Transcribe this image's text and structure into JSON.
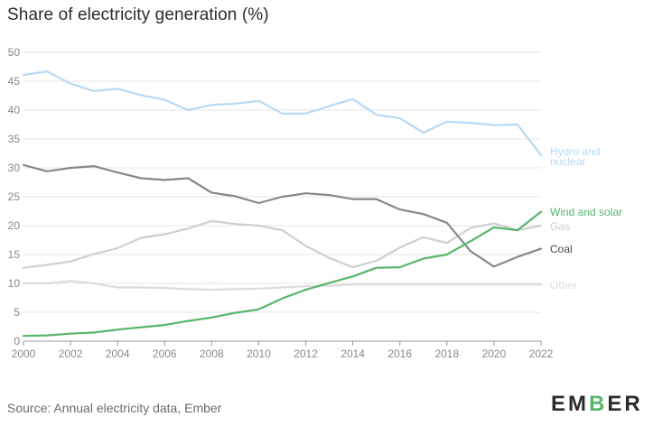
{
  "title": "Share of electricity generation (%)",
  "source": "Source: Annual electricity data, Ember",
  "logo": {
    "text": "EMBER",
    "accent": "#56b66a"
  },
  "chart_data": {
    "type": "line",
    "title": "Share of electricity generation (%)",
    "xlabel": "",
    "ylabel": "",
    "xlim": [
      2000,
      2022
    ],
    "ylim": [
      0,
      50
    ],
    "x_ticks": [
      "2000",
      "2002",
      "2004",
      "2006",
      "2008",
      "2010",
      "2012",
      "2014",
      "2016",
      "2018",
      "2020",
      "2022"
    ],
    "y_ticks": [
      "0",
      "5",
      "10",
      "15",
      "20",
      "25",
      "30",
      "35",
      "40",
      "45",
      "50"
    ],
    "grid": true,
    "legend": "direct labels at right end of lines",
    "x": [
      2000,
      2001,
      2002,
      2003,
      2004,
      2005,
      2006,
      2007,
      2008,
      2009,
      2010,
      2011,
      2012,
      2013,
      2014,
      2015,
      2016,
      2017,
      2018,
      2019,
      2020,
      2021,
      2022
    ],
    "series": [
      {
        "name": "Hydro and nuclear",
        "label_lines": [
          "Hydro and",
          "nuclear"
        ],
        "color": "#b8d9f3",
        "values": [
          46.1,
          46.7,
          44.6,
          43.3,
          43.7,
          42.6,
          41.8,
          40.0,
          40.9,
          41.1,
          41.6,
          39.4,
          39.4,
          40.7,
          41.9,
          39.2,
          38.6,
          36.1,
          38.0,
          37.8,
          37.4,
          37.5,
          32.2
        ]
      },
      {
        "name": "Coal",
        "label_lines": [
          "Coal"
        ],
        "color": "#888888",
        "values": [
          30.5,
          29.4,
          30.0,
          30.3,
          29.2,
          28.2,
          27.9,
          28.2,
          25.7,
          25.1,
          23.9,
          25.0,
          25.6,
          25.3,
          24.6,
          24.6,
          22.8,
          22.0,
          20.5,
          15.6,
          12.9,
          14.6,
          16.0
        ]
      },
      {
        "name": "Gas",
        "label_lines": [
          "Gas"
        ],
        "color": "#cfcfcf",
        "values": [
          12.7,
          13.2,
          13.8,
          15.1,
          16.1,
          17.9,
          18.5,
          19.5,
          20.8,
          20.3,
          20.0,
          19.2,
          16.5,
          14.4,
          12.8,
          13.9,
          16.2,
          18.0,
          17.0,
          19.6,
          20.4,
          19.2,
          20.0
        ]
      },
      {
        "name": "Wind and solar",
        "label_lines": [
          "Wind and solar"
        ],
        "color": "#56b66a",
        "values": [
          0.9,
          1.0,
          1.3,
          1.5,
          2.0,
          2.4,
          2.8,
          3.5,
          4.1,
          4.9,
          5.5,
          7.4,
          8.9,
          10.1,
          11.2,
          12.7,
          12.8,
          14.3,
          15.0,
          17.3,
          19.7,
          19.2,
          22.4
        ]
      },
      {
        "name": "Other",
        "label_lines": [
          "Other"
        ],
        "color": "#dcdcdc",
        "values": [
          10.0,
          10.0,
          10.4,
          10.0,
          9.3,
          9.3,
          9.2,
          9.0,
          8.9,
          9.0,
          9.1,
          9.3,
          9.5,
          9.6,
          9.8,
          9.8,
          9.8,
          9.8,
          9.8,
          9.8,
          9.8,
          9.8,
          9.8
        ]
      }
    ]
  }
}
